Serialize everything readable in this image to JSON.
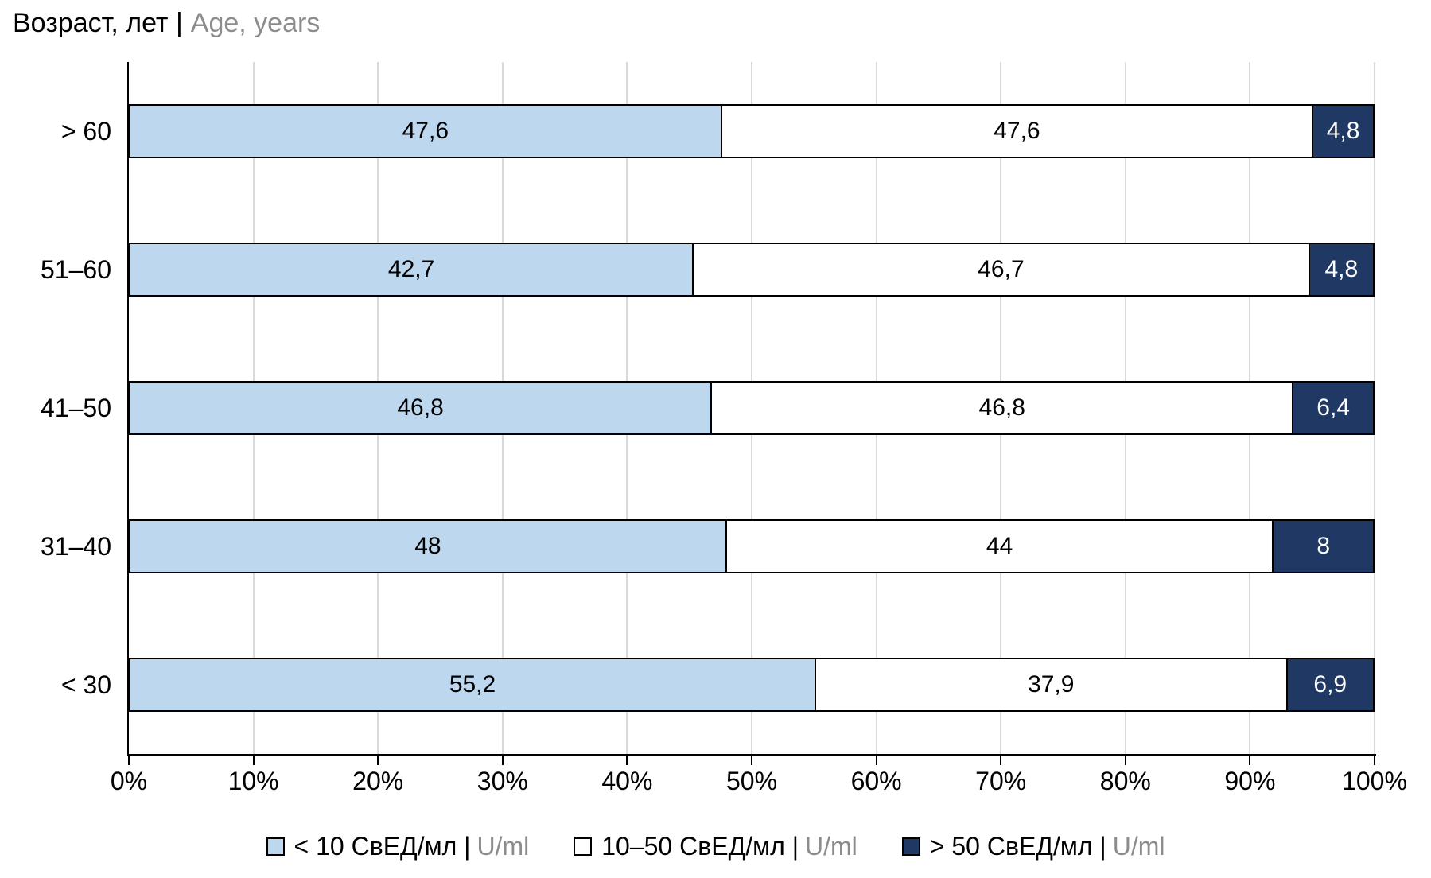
{
  "title": {
    "ru": "Возраст, лет |",
    "en": "Age, years"
  },
  "colors": {
    "series_light_blue": "#BDD7EE",
    "series_white": "#FFFFFF",
    "series_dark_blue": "#1F3864",
    "bar_border": "#000000",
    "gridline": "#D9D9D9",
    "axis": "#000000",
    "secondary_text_gray": "#8C8C8C"
  },
  "chart_data": {
    "type": "bar",
    "orientation": "horizontal",
    "stacked": "100%",
    "categories": [
      "> 60",
      "51–60",
      "41–50",
      "31–40",
      "< 30"
    ],
    "series": [
      {
        "name": "< 10 СвЕД/мл | U/ml",
        "color": "#BDD7EE",
        "text_color": "#000000",
        "values": [
          47.6,
          42.7,
          46.8,
          48,
          55.2
        ],
        "labels": [
          "47,6",
          "42,7",
          "46,8",
          "48",
          "55,2"
        ]
      },
      {
        "name": "10–50 СвЕД/мл | U/ml",
        "color": "#FFFFFF",
        "text_color": "#000000",
        "values": [
          47.6,
          46.7,
          46.8,
          44,
          37.9
        ],
        "labels": [
          "47,6",
          "46,7",
          "46,8",
          "44",
          "37,9"
        ]
      },
      {
        "name": "> 50 СвЕД/мл | U/ml",
        "color": "#1F3864",
        "text_color": "#FFFFFF",
        "values": [
          4.8,
          4.8,
          6.4,
          8,
          6.9
        ],
        "labels": [
          "4,8",
          "4,8",
          "6,4",
          "8",
          "6,9"
        ]
      }
    ],
    "x_ticks": [
      "0%",
      "10%",
      "20%",
      "30%",
      "40%",
      "50%",
      "60%",
      "70%",
      "80%",
      "90%",
      "100%"
    ],
    "xlim": [
      0,
      100
    ],
    "grid": true,
    "legend_position": "bottom"
  },
  "legend": {
    "items": [
      {
        "label_ru": "< 10 СвЕД/мл |",
        "label_en": "U/ml",
        "color": "#BDD7EE"
      },
      {
        "label_ru": "10–50 СвЕД/мл |",
        "label_en": "U/ml",
        "color": "#FFFFFF"
      },
      {
        "label_ru": "> 50 СвЕД/мл |",
        "label_en": "U/ml",
        "color": "#1F3864"
      }
    ]
  }
}
